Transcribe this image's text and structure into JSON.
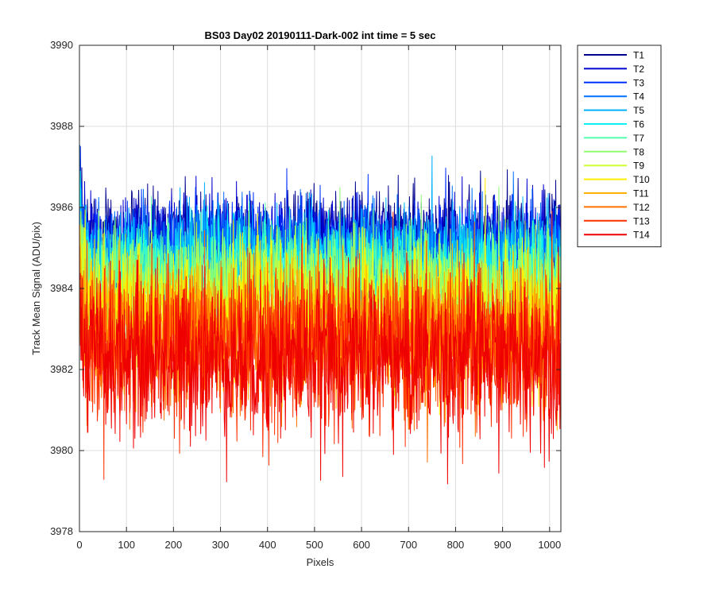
{
  "chart_data": {
    "type": "line",
    "title": "BS03 Day02 20190111-Dark-002 int time = 5 sec",
    "xlabel": "Pixels",
    "ylabel": "Track Mean Signal (ADU/pix)",
    "xlim": [
      0,
      1024
    ],
    "ylim": [
      3978,
      3990
    ],
    "xticks": [
      "0",
      "100",
      "200",
      "300",
      "400",
      "500",
      "600",
      "700",
      "800",
      "900",
      "1000"
    ],
    "yticks": [
      "3978",
      "3980",
      "3982",
      "3984",
      "3986",
      "3988",
      "3990"
    ],
    "grid": true,
    "legend_position": "outside top-right",
    "points_per_series": 1024,
    "series": [
      {
        "name": "T1",
        "color": "#00008f",
        "mean": 3985.3,
        "spread": 0.55
      },
      {
        "name": "T2",
        "color": "#0000d0",
        "mean": 3985.2,
        "spread": 0.55
      },
      {
        "name": "T3",
        "color": "#0030ff",
        "mean": 3985.0,
        "spread": 0.55
      },
      {
        "name": "T4",
        "color": "#0070ff",
        "mean": 3984.9,
        "spread": 0.6
      },
      {
        "name": "T5",
        "color": "#00b0ff",
        "mean": 3984.7,
        "spread": 0.6
      },
      {
        "name": "T6",
        "color": "#10efef",
        "mean": 3984.5,
        "spread": 0.6
      },
      {
        "name": "T7",
        "color": "#50ffaf",
        "mean": 3984.3,
        "spread": 0.65
      },
      {
        "name": "T8",
        "color": "#8fff70",
        "mean": 3984.0,
        "spread": 0.7
      },
      {
        "name": "T9",
        "color": "#cfff30",
        "mean": 3983.7,
        "spread": 0.75
      },
      {
        "name": "T10",
        "color": "#ffef00",
        "mean": 3983.3,
        "spread": 0.8
      },
      {
        "name": "T11",
        "color": "#ffb000",
        "mean": 3983.0,
        "spread": 0.85
      },
      {
        "name": "T12",
        "color": "#ff7000",
        "mean": 3982.7,
        "spread": 0.9
      },
      {
        "name": "T13",
        "color": "#ff3000",
        "mean": 3982.5,
        "spread": 0.95
      },
      {
        "name": "T14",
        "color": "#ef0000",
        "mean": 3982.3,
        "spread": 1.0
      }
    ]
  }
}
